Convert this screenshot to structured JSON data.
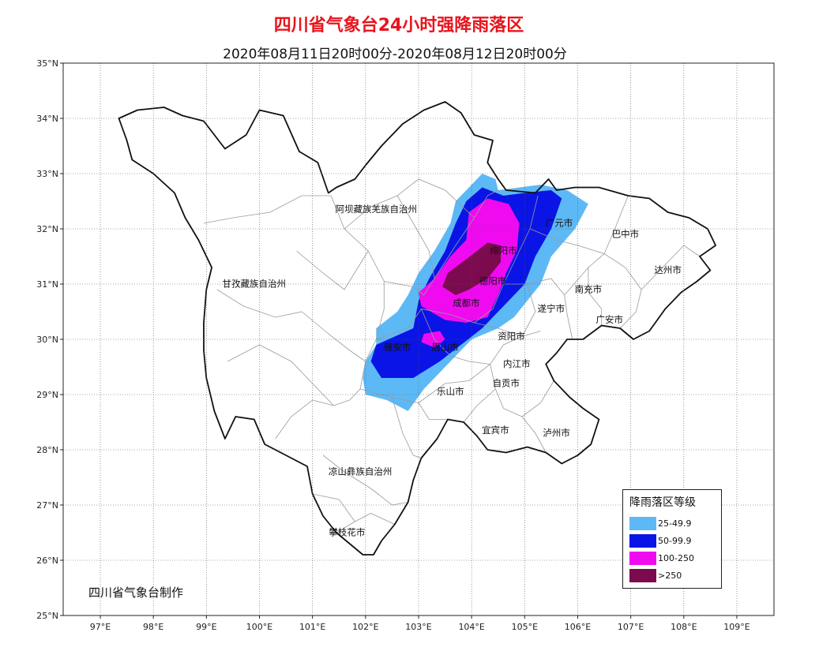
{
  "title": "四川省气象台24小时强降雨落区",
  "subtitle": "2020年08月11日20时00分-2020年08月12日20时00分",
  "credit": "四川省气象台制作",
  "lat_ticks": [
    "35°N",
    "34°N",
    "33°N",
    "32°N",
    "31°N",
    "30°N",
    "29°N",
    "28°N",
    "27°N",
    "26°N",
    "25°N"
  ],
  "lon_ticks": [
    "97°E",
    "98°E",
    "99°E",
    "100°E",
    "101°E",
    "102°E",
    "103°E",
    "104°E",
    "105°E",
    "106°E",
    "107°E",
    "108°E",
    "109°E"
  ],
  "cities": [
    {
      "name": "阿坝藏族羌族自治州",
      "lon": 102.2,
      "lat": 32.3
    },
    {
      "name": "甘孜藏族自治州",
      "lon": 99.9,
      "lat": 30.95
    },
    {
      "name": "凉山彝族自治州",
      "lon": 101.9,
      "lat": 27.55
    },
    {
      "name": "攀枝花市",
      "lon": 101.65,
      "lat": 26.45
    },
    {
      "name": "广元市",
      "lon": 105.65,
      "lat": 32.05
    },
    {
      "name": "巴中市",
      "lon": 106.9,
      "lat": 31.85
    },
    {
      "name": "达州市",
      "lon": 107.7,
      "lat": 31.2
    },
    {
      "name": "绵阳市",
      "lon": 104.6,
      "lat": 31.55
    },
    {
      "name": "德阳市",
      "lon": 104.4,
      "lat": 31.0
    },
    {
      "name": "南充市",
      "lon": 106.2,
      "lat": 30.85
    },
    {
      "name": "成都市",
      "lon": 103.9,
      "lat": 30.6
    },
    {
      "name": "遂宁市",
      "lon": 105.5,
      "lat": 30.5
    },
    {
      "name": "广安市",
      "lon": 106.6,
      "lat": 30.3
    },
    {
      "name": "资阳市",
      "lon": 104.75,
      "lat": 30.0
    },
    {
      "name": "雅安市",
      "lon": 102.6,
      "lat": 29.8
    },
    {
      "name": "眉山市",
      "lon": 103.5,
      "lat": 29.8
    },
    {
      "name": "内江市",
      "lon": 104.85,
      "lat": 29.5
    },
    {
      "name": "自贡市",
      "lon": 104.65,
      "lat": 29.15
    },
    {
      "name": "乐山市",
      "lon": 103.6,
      "lat": 29.0
    },
    {
      "name": "宜宾市",
      "lon": 104.45,
      "lat": 28.3
    },
    {
      "name": "泸州市",
      "lon": 105.6,
      "lat": 28.25
    }
  ],
  "legend": {
    "title": "降雨落区等级",
    "items": [
      {
        "label": "25-49.9",
        "color": "#5db9f5"
      },
      {
        "label": "50-99.9",
        "color": "#0a14e6"
      },
      {
        "label": "100-250",
        "color": "#f00af0"
      },
      {
        "label": ">250",
        "color": "#7c0a4e"
      }
    ]
  },
  "rain_zones": [
    {
      "level": "25-49.9",
      "color": "#5db9f5",
      "path": [
        [
          102,
          29.0
        ],
        [
          101.95,
          29.3
        ],
        [
          102.0,
          29.6
        ],
        [
          102.2,
          29.9
        ],
        [
          102.2,
          30.2
        ],
        [
          102.6,
          30.5
        ],
        [
          102.8,
          30.8
        ],
        [
          103.0,
          31.2
        ],
        [
          103.3,
          31.6
        ],
        [
          103.6,
          32.1
        ],
        [
          103.7,
          32.5
        ],
        [
          104.0,
          32.8
        ],
        [
          104.2,
          33.0
        ],
        [
          104.45,
          32.9
        ],
        [
          104.5,
          32.7
        ],
        [
          105.3,
          32.8
        ],
        [
          105.8,
          32.7
        ],
        [
          106.2,
          32.45
        ],
        [
          105.95,
          32.0
        ],
        [
          105.5,
          31.5
        ],
        [
          105.3,
          31.0
        ],
        [
          104.8,
          30.4
        ],
        [
          104.5,
          30.2
        ],
        [
          104.0,
          30.0
        ],
        [
          103.6,
          29.6
        ],
        [
          103.1,
          29.1
        ],
        [
          102.8,
          28.7
        ],
        [
          102.4,
          28.9
        ]
      ]
    },
    {
      "level": "50-99.9",
      "color": "#0a14e6",
      "path": [
        [
          102.1,
          29.6
        ],
        [
          102.2,
          29.9
        ],
        [
          102.9,
          30.2
        ],
        [
          103.0,
          30.7
        ],
        [
          103.2,
          31.1
        ],
        [
          103.5,
          31.6
        ],
        [
          103.7,
          32.1
        ],
        [
          103.9,
          32.5
        ],
        [
          104.2,
          32.75
        ],
        [
          104.6,
          32.6
        ],
        [
          105.0,
          32.65
        ],
        [
          105.5,
          32.7
        ],
        [
          105.7,
          32.55
        ],
        [
          105.5,
          32.0
        ],
        [
          105.2,
          31.5
        ],
        [
          105.0,
          31.0
        ],
        [
          104.6,
          30.6
        ],
        [
          104.2,
          30.2
        ],
        [
          103.8,
          29.9
        ],
        [
          103.4,
          29.6
        ],
        [
          102.9,
          29.3
        ],
        [
          102.3,
          29.3
        ]
      ]
    },
    {
      "level": "100-250",
      "color": "#f00af0",
      "path": [
        [
          103.05,
          30.6
        ],
        [
          103.0,
          30.85
        ],
        [
          103.3,
          31.1
        ],
        [
          103.6,
          31.5
        ],
        [
          103.9,
          31.8
        ],
        [
          103.95,
          32.3
        ],
        [
          104.3,
          32.55
        ],
        [
          104.7,
          32.45
        ],
        [
          104.9,
          32.1
        ],
        [
          104.85,
          31.6
        ],
        [
          104.65,
          31.2
        ],
        [
          104.5,
          30.8
        ],
        [
          104.3,
          30.4
        ],
        [
          103.9,
          30.3
        ],
        [
          103.5,
          30.35
        ]
      ]
    },
    {
      "level": "100-250",
      "color": "#f00af0",
      "path": [
        [
          103.05,
          29.95
        ],
        [
          103.1,
          30.1
        ],
        [
          103.4,
          30.15
        ],
        [
          103.5,
          30.0
        ],
        [
          103.3,
          29.85
        ]
      ]
    },
    {
      "level": ">250",
      "color": "#7c0a4e",
      "path": [
        [
          103.45,
          30.95
        ],
        [
          103.55,
          31.2
        ],
        [
          103.9,
          31.45
        ],
        [
          104.3,
          31.75
        ],
        [
          104.55,
          31.7
        ],
        [
          104.55,
          31.4
        ],
        [
          104.3,
          31.1
        ],
        [
          103.95,
          30.9
        ],
        [
          103.7,
          30.8
        ]
      ]
    }
  ]
}
